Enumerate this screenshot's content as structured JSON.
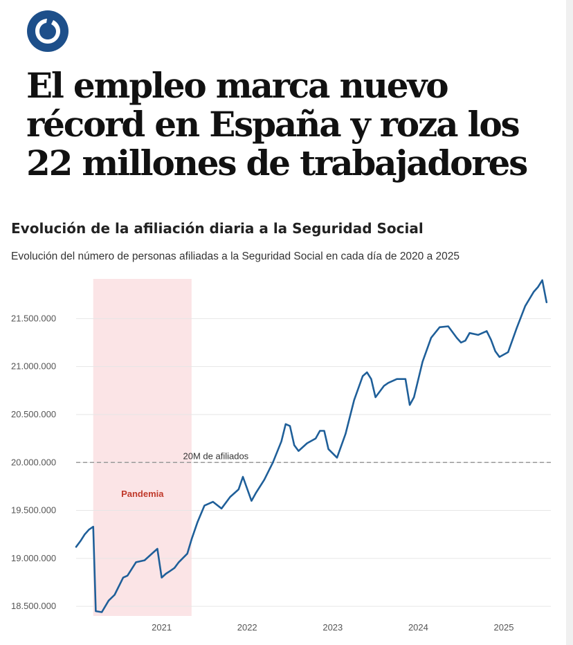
{
  "headline": "El empleo marca nuevo récord en España y roza los 22 millones de trabajadores",
  "logo_icon": "publication-logo-icon",
  "colors": {
    "line": "#1f5f99",
    "band": "#fbe4e6",
    "band_label": "#c0392b",
    "grid": "#e6e6e6",
    "reference": "#999999"
  },
  "chart_data": {
    "type": "line",
    "title": "Evolución de la afiliación diaria a la Seguridad Social",
    "subtitle": "Evolución del número de personas afiliadas a la Seguridad Social en cada día de 2020 a 2025",
    "xlabel": "",
    "ylabel": "",
    "xlim": [
      2020.0,
      2025.55
    ],
    "ylim": [
      18400000,
      21950000
    ],
    "x_ticks": [
      2021,
      2022,
      2023,
      2024,
      2025
    ],
    "x_tick_labels": [
      "2021",
      "2022",
      "2023",
      "2024",
      "2025"
    ],
    "y_ticks": [
      18500000,
      19000000,
      19500000,
      20000000,
      20500000,
      21000000,
      21500000
    ],
    "y_tick_labels": [
      "18.500.000",
      "19.000.000",
      "19.500.000",
      "20.000.000",
      "20.500.000",
      "21.000.000",
      "21.500.000"
    ],
    "grid": true,
    "shaded_regions": [
      {
        "label": "Pandemia",
        "x_start": 2020.2,
        "x_end": 2021.35
      }
    ],
    "reference_lines": [
      {
        "y": 20000000,
        "label": "20M de afiliados",
        "style": "dashed"
      }
    ],
    "series": [
      {
        "x": [
          2020.0,
          2020.05,
          2020.1,
          2020.15,
          2020.2,
          2020.23,
          2020.3,
          2020.38,
          2020.45,
          2020.55,
          2020.6,
          2020.7,
          2020.8,
          2020.9,
          2020.95,
          2021.0,
          2021.05,
          2021.1,
          2021.15,
          2021.2,
          2021.3,
          2021.35,
          2021.42,
          2021.5,
          2021.6,
          2021.7,
          2021.8,
          2021.9,
          2021.95,
          2022.05,
          2022.1,
          2022.2,
          2022.3,
          2022.4,
          2022.45,
          2022.5,
          2022.55,
          2022.6,
          2022.7,
          2022.8,
          2022.85,
          2022.9,
          2022.95,
          2023.05,
          2023.15,
          2023.25,
          2023.35,
          2023.4,
          2023.45,
          2023.5,
          2023.6,
          2023.65,
          2023.75,
          2023.85,
          2023.9,
          2023.95,
          2024.05,
          2024.15,
          2024.25,
          2024.35,
          2024.45,
          2024.5,
          2024.55,
          2024.6,
          2024.7,
          2024.8,
          2024.85,
          2024.9,
          2024.95,
          2025.05,
          2025.15,
          2025.25,
          2025.35,
          2025.4,
          2025.45,
          2025.5
        ],
        "y": [
          19120000,
          19180000,
          19250000,
          19300000,
          19330000,
          18450000,
          18440000,
          18560000,
          18620000,
          18800000,
          18820000,
          18960000,
          18980000,
          19060000,
          19100000,
          18800000,
          18840000,
          18870000,
          18900000,
          18960000,
          19050000,
          19200000,
          19380000,
          19550000,
          19590000,
          19520000,
          19640000,
          19720000,
          19850000,
          19600000,
          19680000,
          19820000,
          20000000,
          20220000,
          20400000,
          20380000,
          20180000,
          20120000,
          20200000,
          20250000,
          20330000,
          20330000,
          20140000,
          20050000,
          20300000,
          20650000,
          20900000,
          20940000,
          20870000,
          20680000,
          20800000,
          20830000,
          20870000,
          20870000,
          20600000,
          20680000,
          21050000,
          21300000,
          21410000,
          21420000,
          21300000,
          21250000,
          21270000,
          21350000,
          21330000,
          21370000,
          21280000,
          21160000,
          21100000,
          21150000,
          21400000,
          21630000,
          21780000,
          21830000,
          21900000,
          21670000
        ]
      }
    ]
  }
}
